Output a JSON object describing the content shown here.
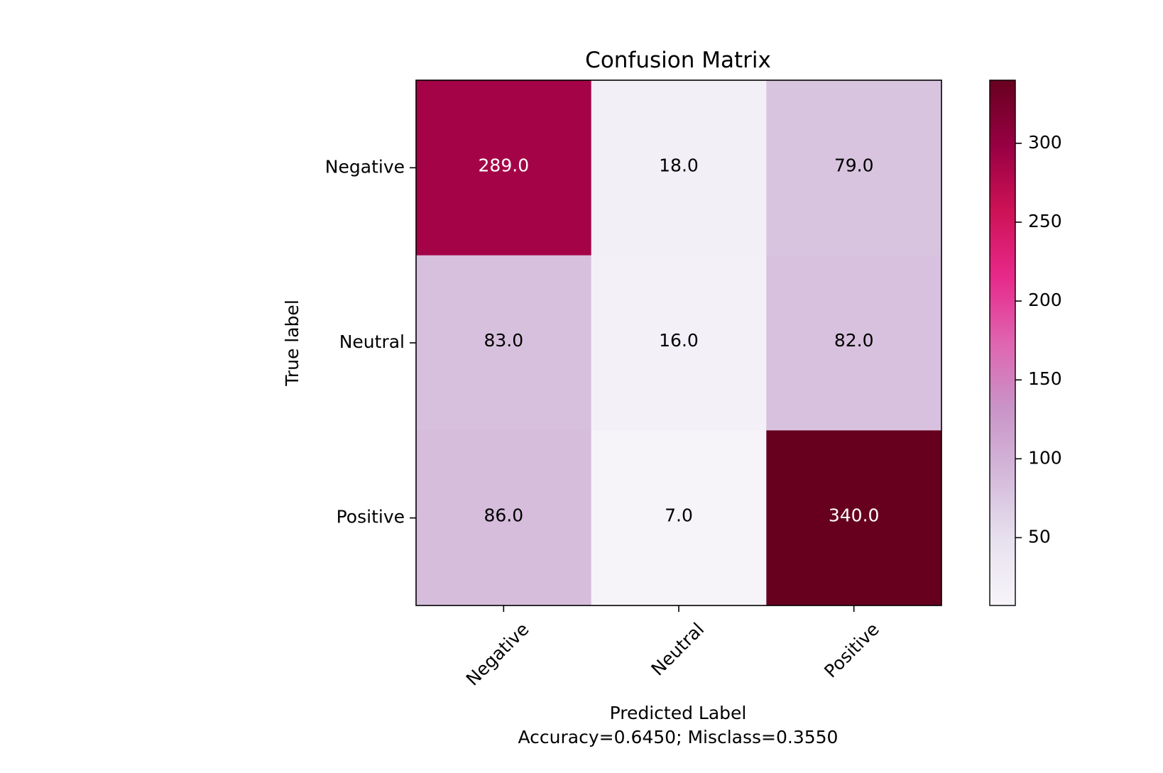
{
  "chart_data": {
    "type": "heatmap",
    "title": "Confusion Matrix",
    "xlabel": "Predicted Label",
    "xlabel_sub": "Accuracy=0.6450; Misclass=0.3550",
    "ylabel": "True label",
    "x_categories": [
      "Negative",
      "Neutral",
      "Positive"
    ],
    "y_categories": [
      "Negative",
      "Neutral",
      "Positive"
    ],
    "values": [
      [
        289.0,
        18.0,
        79.0
      ],
      [
        83.0,
        16.0,
        82.0
      ],
      [
        86.0,
        7.0,
        340.0
      ]
    ],
    "colormap": "PuRd",
    "colorbar": {
      "range": [
        7,
        340
      ],
      "ticks": [
        50,
        100,
        150,
        200,
        250,
        300
      ]
    },
    "colors": {
      "low": "#f7f4f9",
      "high": "#67001f",
      "light_text": "#ffffff",
      "dark_text": "#000000"
    }
  }
}
